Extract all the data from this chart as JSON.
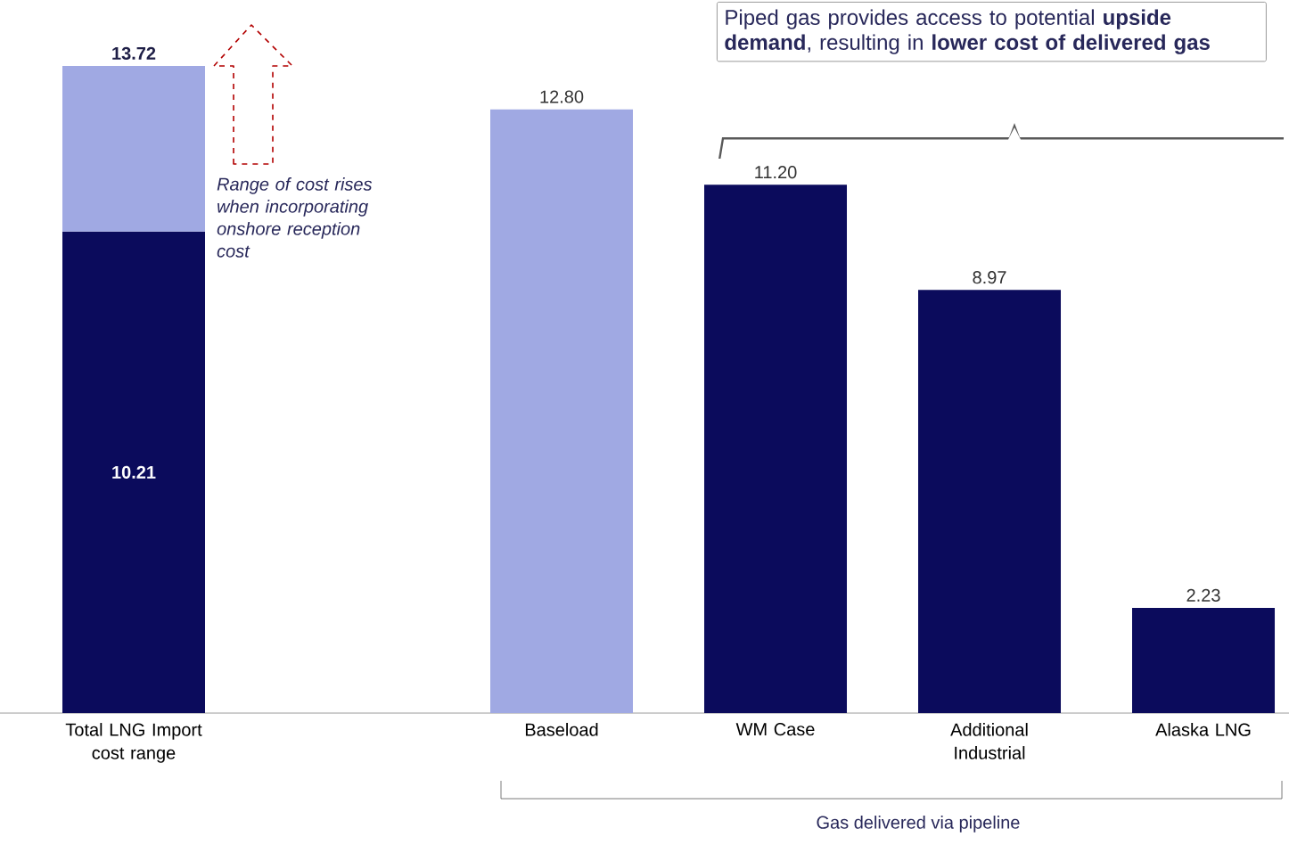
{
  "chart_data": {
    "type": "bar",
    "stacked": true,
    "categories": [
      "Total LNG Import cost range",
      null,
      "Baseload",
      "WM Case",
      "Additional Industrial",
      "Alaska LNG"
    ],
    "series": [
      {
        "color": "#0b0b5c",
        "values": [
          10.21,
          null,
          null,
          11.2,
          8.97,
          2.23
        ],
        "value_labels": [
          "10.21",
          null,
          null,
          "11.20",
          "8.97",
          "2.23"
        ]
      },
      {
        "color": "#a0a9e3",
        "values": [
          3.51,
          null,
          12.8,
          null,
          null,
          null
        ],
        "value_labels": [
          null,
          null,
          "12.80",
          null,
          null,
          null
        ]
      }
    ],
    "totals": [
      "13.72",
      null,
      null,
      null,
      null,
      null
    ],
    "annotations": [
      "*Range of cost rises when incorporating onshore reception cost*",
      "Piped gas provides access to potential **upside demand**, resulting in **lower cost of delivered gas**",
      "Gas delivered via pipeline"
    ]
  }
}
